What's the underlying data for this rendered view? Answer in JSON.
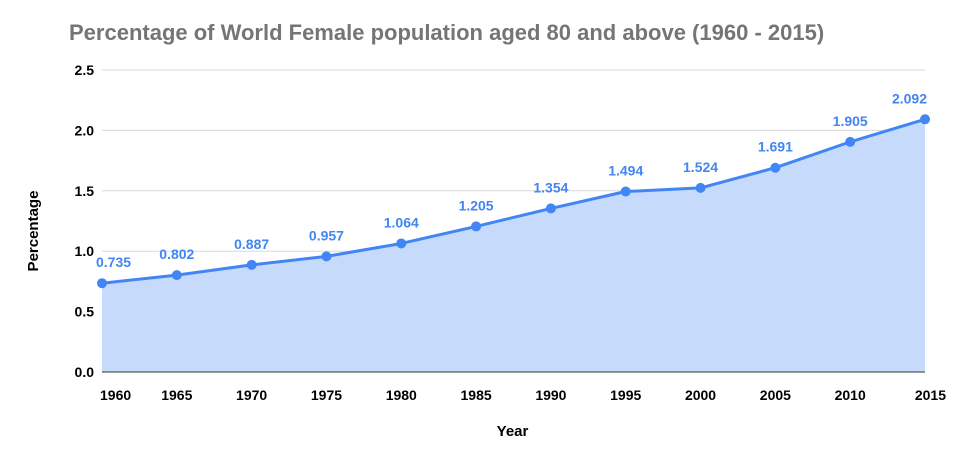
{
  "chart_data": {
    "type": "area",
    "title": "Percentage of World Female population aged 80 and above (1960 - 2015)",
    "xlabel": "Year",
    "ylabel": "Percentage",
    "x": [
      "1960",
      "1965",
      "1970",
      "1975",
      "1980",
      "1985",
      "1990",
      "1995",
      "2000",
      "2005",
      "2010",
      "2015"
    ],
    "values": [
      0.735,
      0.802,
      0.887,
      0.957,
      1.064,
      1.205,
      1.354,
      1.494,
      1.524,
      1.691,
      1.905,
      2.092
    ],
    "data_labels": [
      "0.735",
      "0.802",
      "0.887",
      "0.957",
      "1.064",
      "1.205",
      "1.354",
      "1.494",
      "1.524",
      "1.691",
      "1.905",
      "2.092"
    ],
    "yticks": [
      "0.0",
      "0.5",
      "1.0",
      "1.5",
      "2.0",
      "2.5"
    ],
    "ylim": [
      0,
      2.5
    ],
    "grid": true,
    "legend": "none",
    "colors": {
      "line": "#4285f4",
      "fill": "#c6dafc",
      "label": "#4285f4",
      "grid": "#d9d9d9",
      "axis": "#333333"
    }
  }
}
